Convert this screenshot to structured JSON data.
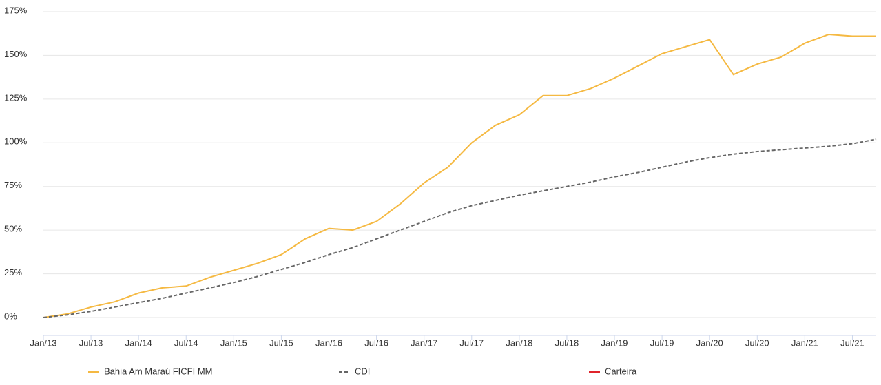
{
  "chart_data": {
    "type": "line",
    "x": [
      "Jan/13",
      null,
      "Jul/13",
      null,
      "Jan/14",
      null,
      "Jul/14",
      null,
      "Jan/15",
      null,
      "Jul/15",
      null,
      "Jan/16",
      null,
      "Jul/16",
      null,
      "Jan/17",
      null,
      "Jul/17",
      null,
      "Jan/18",
      null,
      "Jul/18",
      null,
      "Jan/19",
      null,
      "Jul/19",
      null,
      "Jan/20",
      null,
      "Jul/20",
      null,
      "Jan/21",
      null,
      "Jul/21",
      null
    ],
    "series": [
      {
        "name": "Bahia Am Maraú FICFI MM",
        "color": "#f5b942",
        "dashed": false,
        "values": [
          0,
          2,
          6,
          9,
          14,
          17,
          18,
          23,
          27,
          31,
          36,
          45,
          51,
          50,
          55,
          65,
          77,
          86,
          100,
          110,
          116,
          127,
          127,
          131,
          137,
          144,
          151,
          155,
          159,
          139,
          145,
          149,
          157,
          162,
          161,
          161
        ]
      },
      {
        "name": "CDI",
        "color": "#666666",
        "dashed": true,
        "values": [
          0,
          1.5,
          3.5,
          6,
          8.5,
          11,
          14,
          17,
          20,
          23.5,
          27.5,
          31.5,
          36,
          40,
          45,
          50,
          55,
          60,
          64,
          67,
          70,
          72.5,
          75,
          77.5,
          80.5,
          83,
          86,
          89,
          91.5,
          93.5,
          95,
          96,
          97,
          98,
          99.5,
          102
        ]
      },
      {
        "name": "Carteira",
        "color": "#e0242b",
        "dashed": false,
        "values": [
          null,
          null,
          null,
          null,
          null,
          null,
          null,
          null,
          null,
          null,
          null,
          null,
          null,
          null,
          null,
          null,
          null,
          null,
          null,
          null,
          null,
          null,
          null,
          null,
          null,
          null,
          null,
          null,
          null,
          null,
          null,
          null,
          null,
          null,
          null,
          null
        ]
      }
    ],
    "ylim": [
      -10,
      180
    ],
    "yticks": [
      {
        "value": 0,
        "label": "0%"
      },
      {
        "value": 25,
        "label": "25%"
      },
      {
        "value": 50,
        "label": "50%"
      },
      {
        "value": 75,
        "label": "75%"
      },
      {
        "value": 100,
        "label": "100%"
      },
      {
        "value": 125,
        "label": "125%"
      },
      {
        "value": 150,
        "label": "150%"
      },
      {
        "value": 175,
        "label": "175%"
      }
    ],
    "grid": true
  }
}
